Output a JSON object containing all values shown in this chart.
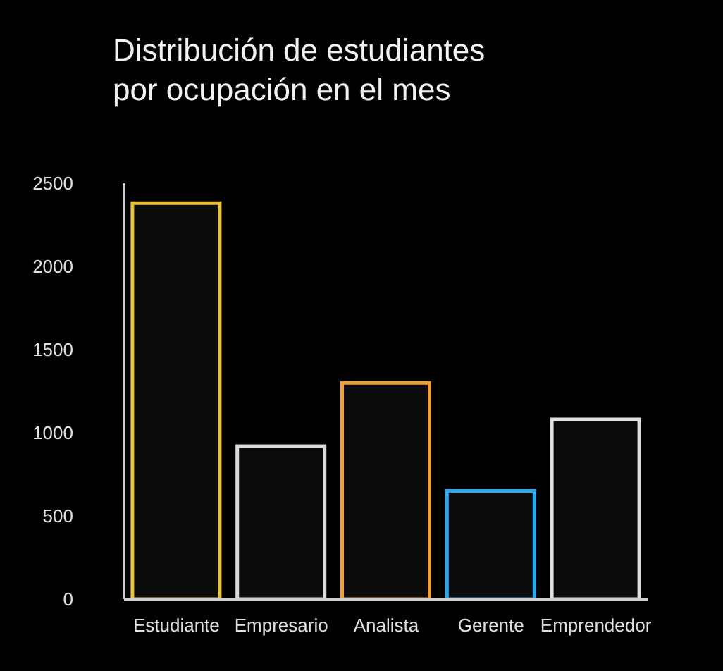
{
  "chart_data": {
    "type": "bar",
    "title": "Distribución de estudiantes\npor ocupación en el mes",
    "categories": [
      "Estudiante",
      "Empresario",
      "Analista",
      "Gerente",
      "Emprendedor"
    ],
    "values": [
      2380,
      920,
      1300,
      650,
      1080
    ],
    "colors": [
      "#e8c33a",
      "#dcdcdc",
      "#f0a030",
      "#2aa8f0",
      "#e0e0e0"
    ],
    "ylim": [
      0,
      2500
    ],
    "yticks": [
      0,
      500,
      1000,
      1500,
      2000,
      2500
    ],
    "grid": false,
    "legend": false
  }
}
